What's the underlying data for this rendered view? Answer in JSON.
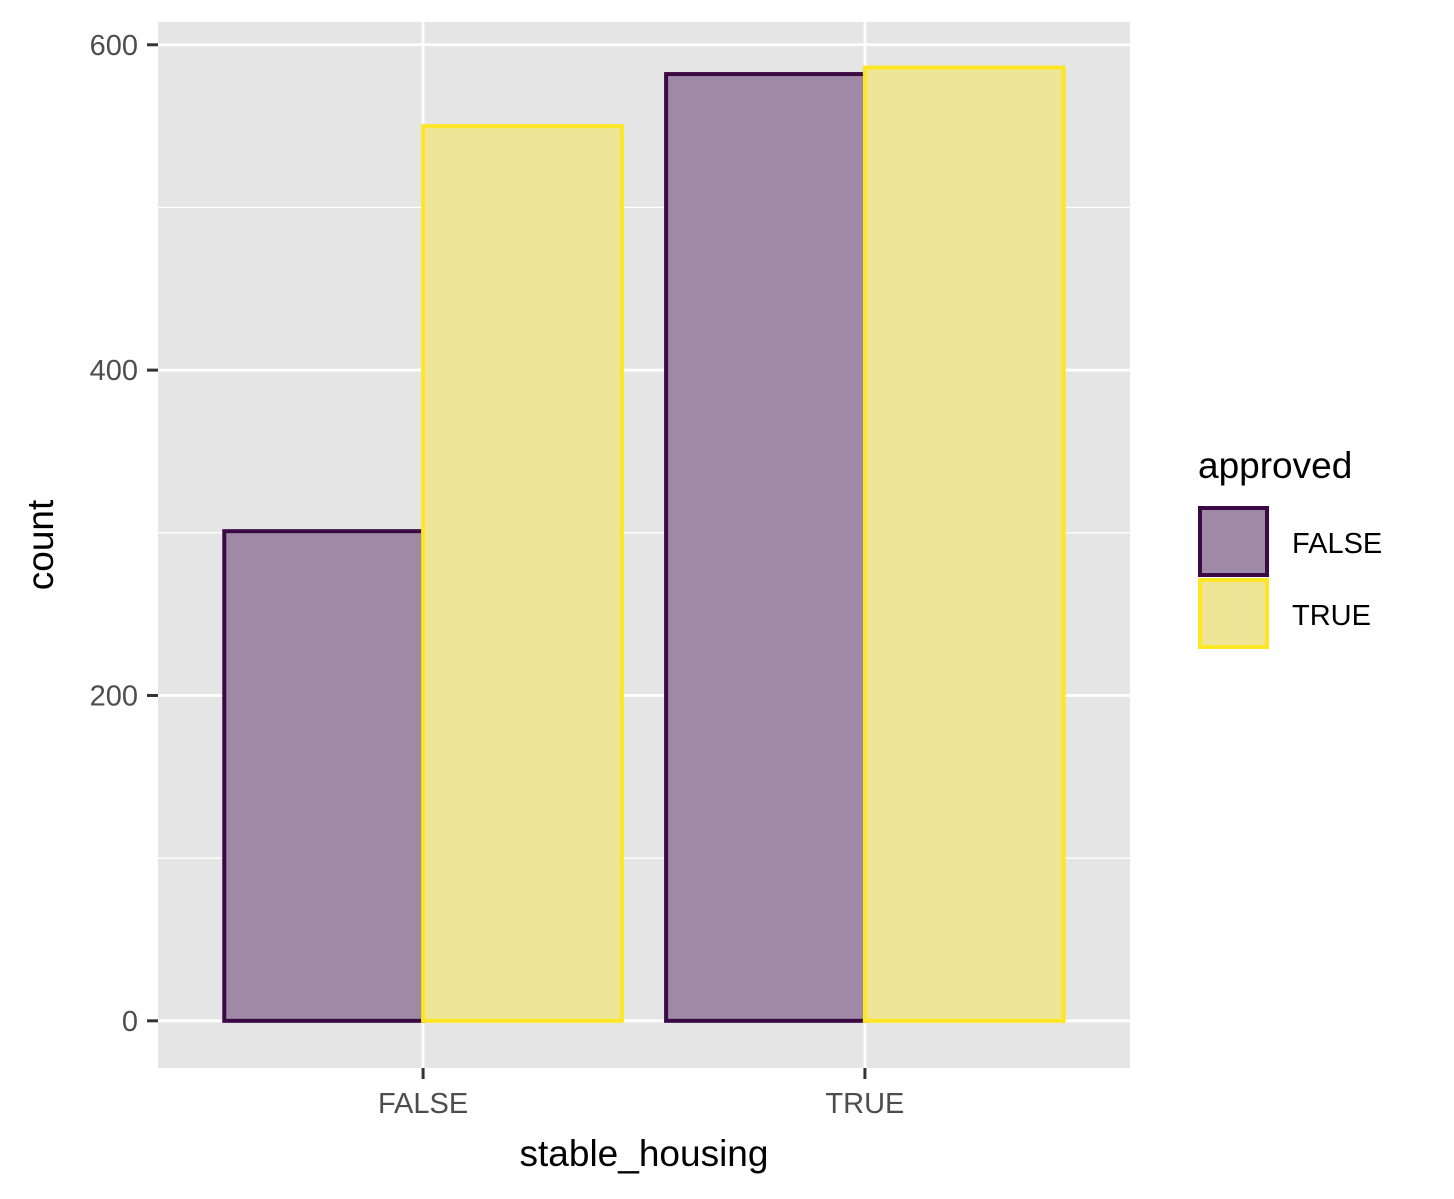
{
  "chart_data": {
    "type": "bar",
    "categories": [
      "FALSE",
      "TRUE"
    ],
    "series": [
      {
        "name": "FALSE",
        "values": [
          301,
          582
        ]
      },
      {
        "name": "TRUE",
        "values": [
          550,
          586
        ]
      }
    ],
    "xlabel": "stable_housing",
    "ylabel": "count",
    "ylim": [
      -29,
      614
    ],
    "yticks": [
      0,
      200,
      400,
      600
    ],
    "yticks_minor": [
      100,
      300,
      500
    ],
    "grid": true,
    "legend": {
      "title": "approved",
      "position": "right",
      "entries": [
        "FALSE",
        "TRUE"
      ]
    },
    "colors": {
      "panel_bg": "#e5e5e5",
      "grid": "#ffffff",
      "series_fill": [
        "#9e8aa6",
        "#efe596"
      ],
      "series_stroke": [
        "#3b0a45",
        "#fde725"
      ]
    }
  }
}
